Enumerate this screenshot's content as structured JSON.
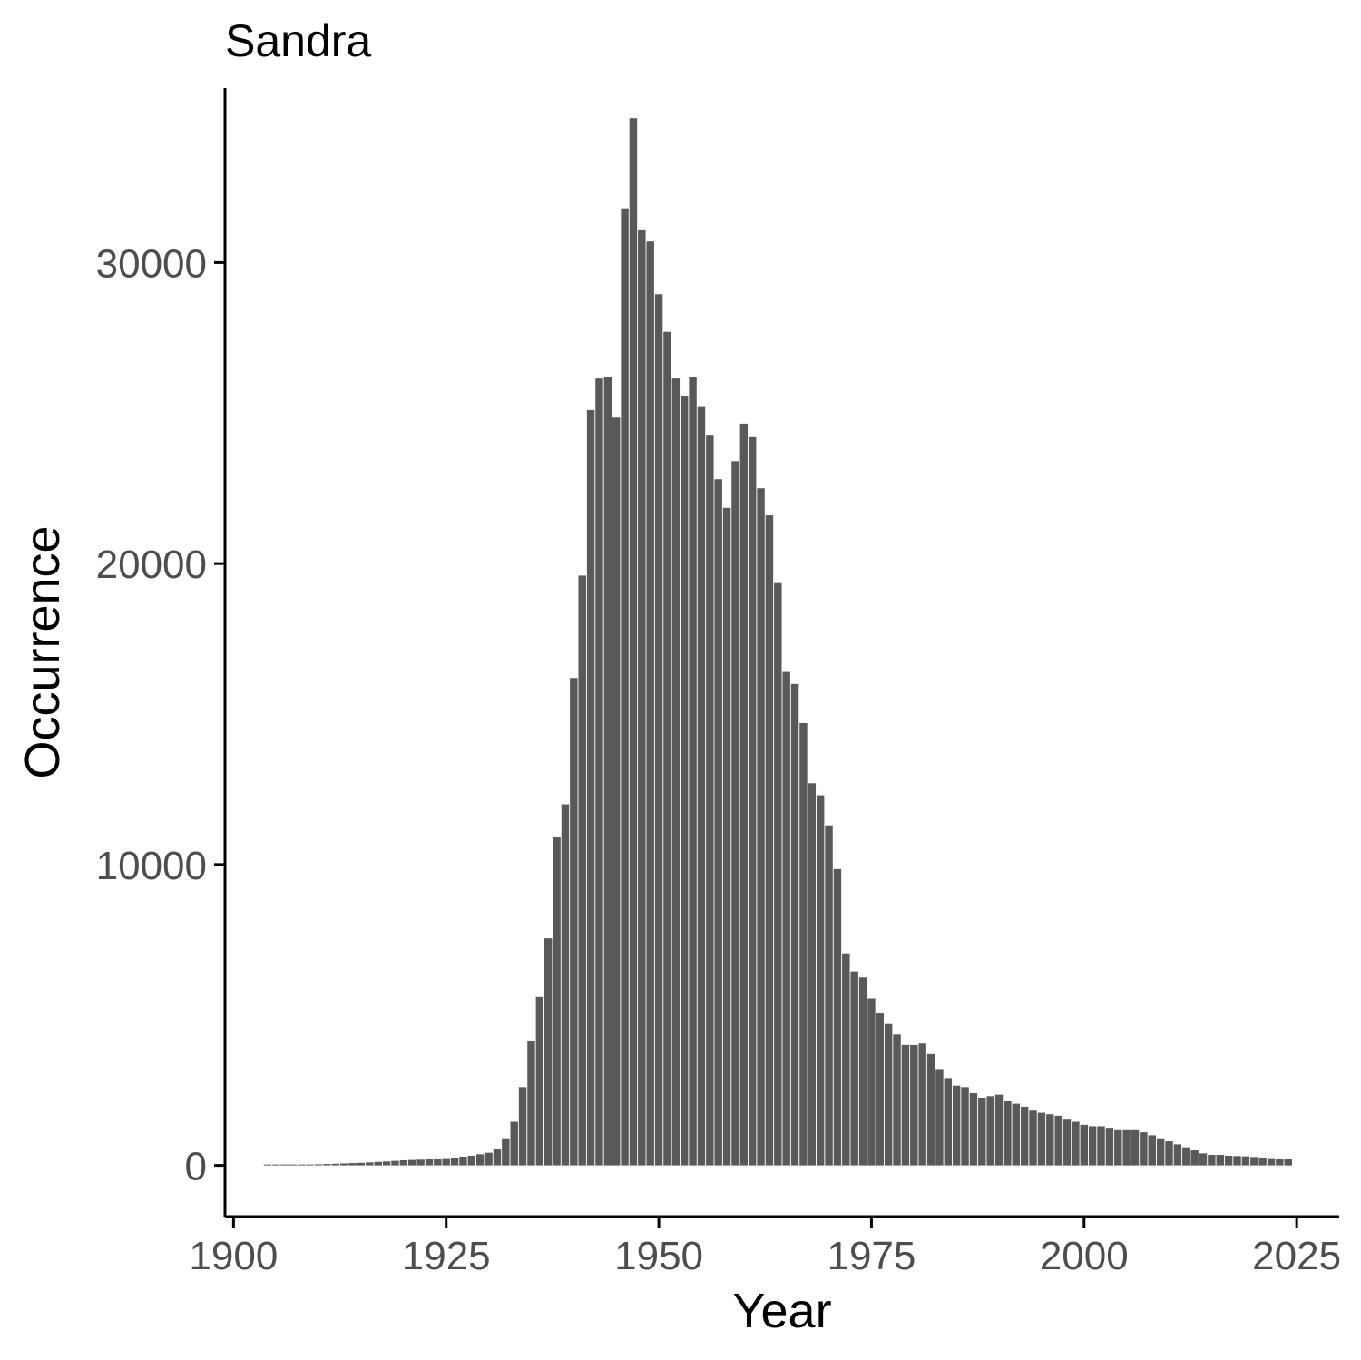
{
  "chart_data": {
    "type": "bar",
    "title": "Sandra",
    "xlabel": "Year",
    "ylabel": "Occurrence",
    "xlim": [
      1899,
      2030
    ],
    "ylim": [
      -1700,
      35800
    ],
    "x_ticks": [
      1900,
      1925,
      1950,
      1975,
      2000,
      2025
    ],
    "y_ticks": [
      0,
      10000,
      20000,
      30000
    ],
    "grid": false,
    "legend": "none",
    "bar_color": "#595959",
    "tick_color": "#4d4d4d",
    "axis_color": "#000000",
    "x": [
      1904,
      1905,
      1906,
      1907,
      1908,
      1909,
      1910,
      1911,
      1912,
      1913,
      1914,
      1915,
      1916,
      1917,
      1918,
      1919,
      1920,
      1921,
      1922,
      1923,
      1924,
      1925,
      1926,
      1927,
      1928,
      1929,
      1930,
      1931,
      1932,
      1933,
      1934,
      1935,
      1936,
      1937,
      1938,
      1939,
      1940,
      1941,
      1942,
      1943,
      1944,
      1945,
      1946,
      1947,
      1948,
      1949,
      1950,
      1951,
      1952,
      1953,
      1954,
      1955,
      1956,
      1957,
      1958,
      1959,
      1960,
      1961,
      1962,
      1963,
      1964,
      1965,
      1966,
      1967,
      1968,
      1969,
      1970,
      1971,
      1972,
      1973,
      1974,
      1975,
      1976,
      1977,
      1978,
      1979,
      1980,
      1981,
      1982,
      1983,
      1984,
      1985,
      1986,
      1987,
      1988,
      1989,
      1990,
      1991,
      1992,
      1993,
      1994,
      1995,
      1996,
      1997,
      1998,
      1999,
      2000,
      2001,
      2002,
      2003,
      2004,
      2005,
      2006,
      2007,
      2008,
      2009,
      2010,
      2011,
      2012,
      2013,
      2014,
      2015,
      2016,
      2017,
      2018,
      2019,
      2020,
      2021,
      2022,
      2023,
      2024
    ],
    "values": [
      10,
      10,
      15,
      20,
      25,
      30,
      35,
      45,
      55,
      65,
      75,
      85,
      100,
      115,
      130,
      150,
      170,
      180,
      190,
      200,
      220,
      240,
      260,
      290,
      320,
      370,
      420,
      560,
      900,
      1450,
      2600,
      4150,
      5600,
      7550,
      10900,
      12000,
      16200,
      19600,
      25100,
      26150,
      26200,
      24850,
      31800,
      34800,
      31100,
      30700,
      28950,
      27700,
      26150,
      25550,
      26200,
      25200,
      24250,
      22800,
      21850,
      23400,
      24650,
      24200,
      22500,
      21600,
      19350,
      16400,
      16000,
      14700,
      12700,
      12300,
      11300,
      9850,
      7050,
      6450,
      6250,
      5550,
      5050,
      4700,
      4350,
      4000,
      4000,
      4050,
      3700,
      3200,
      2900,
      2650,
      2600,
      2400,
      2250,
      2300,
      2350,
      2150,
      2050,
      1950,
      1850,
      1750,
      1700,
      1650,
      1550,
      1450,
      1350,
      1300,
      1300,
      1250,
      1200,
      1200,
      1200,
      1100,
      1000,
      900,
      800,
      700,
      600,
      500,
      400,
      350,
      350,
      320,
      310,
      300,
      280,
      260,
      240,
      230,
      220
    ]
  }
}
